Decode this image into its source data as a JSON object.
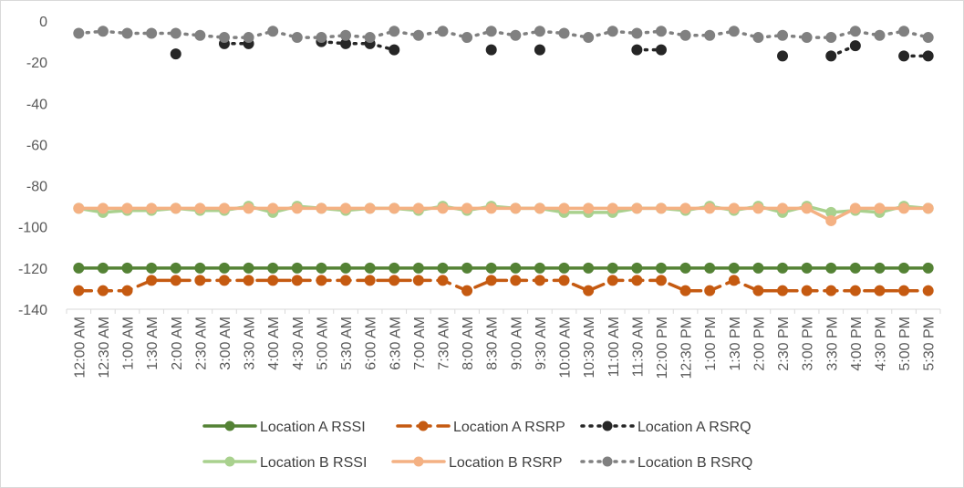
{
  "chart_data": {
    "type": "line",
    "title": "",
    "xlabel": "",
    "ylabel": "",
    "ylim": [
      -140,
      0
    ],
    "yticks": [
      0,
      -20,
      -40,
      -60,
      -80,
      -100,
      -120,
      -140
    ],
    "grid": false,
    "legend_position": "bottom",
    "categories": [
      "12:00 AM",
      "12:30 AM",
      "1:00 AM",
      "1:30 AM",
      "2:00 AM",
      "2:30 AM",
      "3:00 AM",
      "3:30 AM",
      "4:00 AM",
      "4:30 AM",
      "5:00 AM",
      "5:30 AM",
      "6:00 AM",
      "6:30 AM",
      "7:00 AM",
      "7:30 AM",
      "8:00 AM",
      "8:30 AM",
      "9:00 AM",
      "9:30 AM",
      "10:00 AM",
      "10:30 AM",
      "11:00 AM",
      "11:30 AM",
      "12:00 PM",
      "12:30 PM",
      "1:00 PM",
      "1:30 PM",
      "2:00 PM",
      "2:30 PM",
      "3:00 PM",
      "3:30 PM",
      "4:00 PM",
      "4:30 PM",
      "5:00 PM",
      "5:30 PM"
    ],
    "series": [
      {
        "name": "Location A RSSI",
        "color": "#548235",
        "line_style": "solid",
        "values": [
          -120,
          -120,
          -120,
          -120,
          -120,
          -120,
          -120,
          -120,
          -120,
          -120,
          -120,
          -120,
          -120,
          -120,
          -120,
          -120,
          -120,
          -120,
          -120,
          -120,
          -120,
          -120,
          -120,
          -120,
          -120,
          -120,
          -120,
          -120,
          -120,
          -120,
          -120,
          -120,
          -120,
          -120,
          -120,
          -120
        ]
      },
      {
        "name": "Location A RSRP",
        "color": "#C55A11",
        "line_style": "dash",
        "values": [
          -131,
          -131,
          -131,
          -126,
          -126,
          -126,
          -126,
          -126,
          -126,
          -126,
          -126,
          -126,
          -126,
          -126,
          -126,
          -126,
          -131,
          -126,
          -126,
          -126,
          -126,
          -131,
          -126,
          -126,
          -126,
          -131,
          -131,
          -126,
          -131,
          -131,
          -131,
          -131,
          -131,
          -131,
          -131,
          -131
        ]
      },
      {
        "name": "Location A RSRQ",
        "color": "#262626",
        "line_style": "dot",
        "values": [
          null,
          null,
          null,
          null,
          -16,
          null,
          -11,
          -11,
          null,
          null,
          -10,
          -11,
          -11,
          -14,
          null,
          null,
          null,
          -14,
          null,
          -14,
          null,
          null,
          null,
          -14,
          -14,
          null,
          null,
          null,
          null,
          -17,
          null,
          -17,
          -12,
          null,
          -17,
          -17
        ]
      },
      {
        "name": "Location B RSSI",
        "color": "#A9D18E",
        "line_style": "solid",
        "values": [
          -91,
          -93,
          -92,
          -92,
          -91,
          -92,
          -92,
          -90,
          -93,
          -90,
          -91,
          -92,
          -91,
          -91,
          -92,
          -90,
          -92,
          -90,
          -91,
          -91,
          -93,
          -93,
          -93,
          -91,
          -91,
          -92,
          -90,
          -92,
          -90,
          -93,
          -90,
          -93,
          -92,
          -93,
          -90,
          -91
        ]
      },
      {
        "name": "Location B RSRP",
        "color": "#F4B183",
        "line_style": "solid",
        "values": [
          -91,
          -91,
          -91,
          -91,
          -91,
          -91,
          -91,
          -91,
          -91,
          -91,
          -91,
          -91,
          -91,
          -91,
          -91,
          -91,
          -91,
          -91,
          -91,
          -91,
          -91,
          -91,
          -91,
          -91,
          -91,
          -91,
          -91,
          -91,
          -91,
          -91,
          -91,
          -97,
          -91,
          -91,
          -91,
          -91
        ]
      },
      {
        "name": "Location B RSRQ",
        "color": "#808080",
        "line_style": "dot",
        "values": [
          -6,
          -5,
          -6,
          -6,
          -6,
          -7,
          -8,
          -8,
          -5,
          -8,
          -8,
          -7,
          -8,
          -5,
          -7,
          -5,
          -8,
          -5,
          -7,
          -5,
          -6,
          -8,
          -5,
          -6,
          -5,
          -7,
          -7,
          -5,
          -8,
          -7,
          -8,
          -8,
          -5,
          -7,
          -5,
          -8
        ]
      }
    ]
  }
}
